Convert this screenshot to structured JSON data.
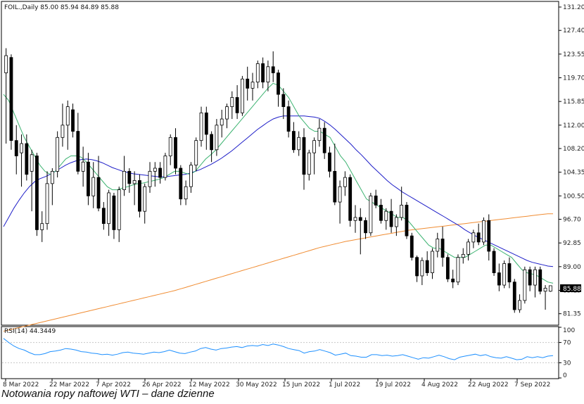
{
  "caption": "Notowania ropy naftowej WTI – dane dzienne",
  "chart_data": {
    "type": "candlestick",
    "symbol_header": "FOIL.,Daily  85.00 85.94 84.89 85.88",
    "last_price_label": "85.88",
    "y_ticks": [
      "131.20",
      "127.40",
      "123.55",
      "119.70",
      "115.85",
      "112.00",
      "108.20",
      "104.35",
      "100.50",
      "96.70",
      "92.85",
      "89.00",
      "85.15",
      "81.35"
    ],
    "x_ticks": [
      "8 Mar 2022",
      "22 Mar 2022",
      "7 Apr 2022",
      "26 Apr 2022",
      "12 May 2022",
      "30 May 2022",
      "15 Jun 2022",
      "1 Jul 2022",
      "19 Jul 2022",
      "4 Aug 2022",
      "22 Aug 2022",
      "7 Sep 2022"
    ],
    "ylim": [
      79.6,
      132.0
    ],
    "candles_ohlc": [
      [
        120.5,
        124.5,
        109.0,
        123.3
      ],
      [
        123.0,
        123.5,
        108.0,
        109.5
      ],
      [
        109.5,
        112.0,
        104.0,
        107.0
      ],
      [
        107.5,
        110.5,
        102.0,
        109.0
      ],
      [
        109.0,
        110.5,
        103.0,
        104.0
      ],
      [
        104.5,
        108.0,
        98.0,
        107.2
      ],
      [
        107.0,
        107.5,
        94.0,
        95.0
      ],
      [
        95.0,
        98.0,
        93.0,
        96.0
      ],
      [
        96.0,
        104.5,
        95.0,
        102.5
      ],
      [
        102.5,
        105.0,
        99.0,
        104.5
      ],
      [
        104.5,
        111.0,
        103.5,
        110.0
      ],
      [
        110.0,
        115.5,
        108.5,
        112.0
      ],
      [
        112.0,
        116.0,
        108.0,
        115.0
      ],
      [
        114.5,
        115.5,
        110.0,
        111.0
      ],
      [
        111.0,
        114.0,
        104.0,
        104.5
      ],
      [
        104.5,
        108.5,
        102.0,
        106.0
      ],
      [
        106.0,
        107.5,
        99.0,
        100.5
      ],
      [
        100.5,
        106.0,
        98.5,
        103.5
      ],
      [
        103.5,
        107.0,
        98.0,
        98.5
      ],
      [
        98.5,
        99.5,
        95.0,
        96.0
      ],
      [
        96.0,
        101.5,
        94.0,
        101.0
      ],
      [
        100.5,
        101.0,
        93.5,
        95.0
      ],
      [
        95.0,
        102.0,
        93.0,
        101.5
      ],
      [
        101.5,
        107.0,
        100.5,
        104.5
      ],
      [
        104.5,
        105.0,
        101.0,
        102.5
      ],
      [
        102.5,
        104.5,
        99.0,
        103.0
      ],
      [
        103.0,
        104.0,
        97.0,
        98.0
      ],
      [
        98.0,
        102.5,
        96.0,
        102.0
      ],
      [
        102.0,
        106.0,
        101.0,
        104.5
      ],
      [
        104.5,
        106.0,
        102.0,
        105.0
      ],
      [
        105.0,
        106.0,
        102.5,
        103.5
      ],
      [
        103.5,
        107.5,
        103.0,
        107.0
      ],
      [
        107.0,
        110.5,
        105.5,
        110.0
      ],
      [
        110.0,
        111.5,
        104.0,
        105.0
      ],
      [
        105.0,
        105.5,
        99.0,
        100.0
      ],
      [
        100.0,
        103.0,
        99.0,
        102.0
      ],
      [
        102.0,
        106.0,
        101.0,
        105.5
      ],
      [
        105.5,
        110.0,
        104.5,
        109.5
      ],
      [
        109.5,
        115.0,
        108.5,
        114.0
      ],
      [
        114.0,
        115.0,
        108.0,
        110.5
      ],
      [
        110.5,
        111.0,
        106.0,
        108.0
      ],
      [
        108.0,
        113.0,
        107.0,
        112.0
      ],
      [
        112.0,
        114.5,
        110.0,
        113.0
      ],
      [
        113.0,
        115.5,
        111.5,
        115.0
      ],
      [
        115.0,
        117.5,
        113.0,
        116.5
      ],
      [
        116.5,
        118.5,
        113.0,
        114.0
      ],
      [
        114.0,
        120.0,
        113.5,
        119.5
      ],
      [
        119.5,
        121.5,
        116.0,
        118.0
      ],
      [
        118.0,
        120.5,
        116.0,
        119.0
      ],
      [
        119.0,
        122.5,
        118.0,
        122.0
      ],
      [
        122.0,
        123.0,
        118.0,
        119.0
      ],
      [
        119.0,
        122.5,
        117.5,
        121.5
      ],
      [
        121.5,
        124.0,
        119.0,
        120.5
      ],
      [
        120.5,
        121.0,
        115.0,
        117.0
      ],
      [
        117.0,
        118.0,
        113.0,
        115.0
      ],
      [
        115.0,
        116.0,
        110.0,
        111.0
      ],
      [
        111.0,
        112.5,
        107.5,
        108.0
      ],
      [
        108.0,
        111.0,
        107.0,
        110.0
      ],
      [
        110.0,
        111.5,
        101.5,
        104.0
      ],
      [
        104.0,
        108.0,
        103.0,
        107.5
      ],
      [
        107.5,
        110.0,
        104.0,
        109.5
      ],
      [
        109.5,
        113.0,
        108.5,
        111.5
      ],
      [
        111.5,
        112.5,
        106.5,
        107.5
      ],
      [
        107.5,
        108.5,
        103.5,
        104.5
      ],
      [
        104.5,
        109.0,
        99.0,
        99.5
      ],
      [
        99.5,
        103.0,
        96.0,
        102.0
      ],
      [
        102.0,
        104.5,
        100.5,
        103.5
      ],
      [
        103.5,
        104.0,
        95.5,
        96.5
      ],
      [
        96.5,
        99.0,
        94.5,
        97.0
      ],
      [
        97.0,
        98.5,
        91.0,
        96.5
      ],
      [
        96.5,
        97.0,
        93.5,
        94.5
      ],
      [
        94.5,
        101.0,
        94.0,
        100.5
      ],
      [
        100.5,
        101.5,
        98.5,
        99.0
      ],
      [
        99.0,
        100.0,
        96.0,
        96.5
      ],
      [
        96.5,
        98.5,
        95.0,
        98.0
      ],
      [
        98.0,
        100.0,
        94.5,
        95.5
      ],
      [
        95.5,
        97.5,
        94.0,
        97.0
      ],
      [
        97.0,
        102.0,
        96.5,
        99.0
      ],
      [
        99.0,
        99.5,
        93.5,
        94.0
      ],
      [
        94.0,
        94.5,
        90.0,
        90.5
      ],
      [
        90.5,
        90.8,
        86.5,
        87.5
      ],
      [
        87.5,
        90.5,
        86.0,
        90.0
      ],
      [
        90.0,
        91.5,
        87.5,
        88.0
      ],
      [
        88.0,
        92.0,
        87.0,
        91.5
      ],
      [
        91.5,
        94.5,
        90.5,
        93.5
      ],
      [
        93.5,
        95.5,
        89.0,
        90.5
      ],
      [
        90.5,
        91.0,
        86.5,
        87.0
      ],
      [
        87.0,
        88.5,
        85.5,
        86.5
      ],
      [
        86.5,
        91.0,
        86.0,
        90.5
      ],
      [
        90.5,
        92.0,
        89.5,
        91.0
      ],
      [
        91.0,
        93.5,
        90.0,
        93.0
      ],
      [
        93.0,
        95.0,
        92.0,
        94.5
      ],
      [
        94.5,
        96.0,
        92.5,
        93.0
      ],
      [
        93.0,
        97.0,
        92.5,
        96.5
      ],
      [
        96.5,
        97.5,
        90.0,
        91.5
      ],
      [
        91.5,
        92.0,
        87.5,
        88.0
      ],
      [
        88.0,
        89.5,
        85.0,
        86.0
      ],
      [
        86.0,
        90.0,
        85.5,
        89.5
      ],
      [
        89.5,
        90.5,
        85.5,
        86.5
      ],
      [
        86.5,
        87.0,
        81.5,
        82.0
      ],
      [
        82.0,
        84.5,
        81.5,
        83.5
      ],
      [
        83.5,
        89.0,
        83.0,
        88.5
      ],
      [
        88.5,
        89.0,
        85.0,
        86.0
      ],
      [
        86.0,
        89.0,
        84.0,
        88.5
      ],
      [
        88.5,
        89.0,
        84.5,
        85.0
      ],
      [
        85.0,
        86.0,
        82.0,
        85.5
      ],
      [
        85.0,
        85.9,
        84.9,
        85.9
      ]
    ],
    "ma_short": [
      117.0,
      116.0,
      114.0,
      112.0,
      110.0,
      108.5,
      107.0,
      105.5,
      104.5,
      104.0,
      104.5,
      105.5,
      106.5,
      107.0,
      107.0,
      106.8,
      106.0,
      105.0,
      104.0,
      103.0,
      102.0,
      101.5,
      101.5,
      101.8,
      102.0,
      102.3,
      102.5,
      102.6,
      102.8,
      103.0,
      103.2,
      103.5,
      104.0,
      104.5,
      104.5,
      104.2,
      104.0,
      104.5,
      105.5,
      106.5,
      107.2,
      108.0,
      109.0,
      110.0,
      111.0,
      112.0,
      113.0,
      114.0,
      115.0,
      116.0,
      117.0,
      118.0,
      118.8,
      118.5,
      117.5,
      116.5,
      115.0,
      113.5,
      112.5,
      111.5,
      111.0,
      111.0,
      110.5,
      110.0,
      108.5,
      107.0,
      106.0,
      104.5,
      103.0,
      101.5,
      100.0,
      99.5,
      99.0,
      98.5,
      98.0,
      97.5,
      97.0,
      97.0,
      96.5,
      95.5,
      94.5,
      93.5,
      92.5,
      92.0,
      92.0,
      91.5,
      91.0,
      90.5,
      90.5,
      90.5,
      91.0,
      91.5,
      92.0,
      92.5,
      92.5,
      92.0,
      91.5,
      91.0,
      90.5,
      89.5,
      88.5,
      88.0,
      87.8,
      87.5,
      87.0,
      86.5,
      86.3
    ],
    "ma_medium": [
      95.5,
      97.0,
      98.5,
      99.8,
      101.0,
      102.0,
      102.8,
      103.3,
      103.6,
      104.0,
      104.5,
      105.0,
      105.5,
      105.9,
      106.2,
      106.4,
      106.5,
      106.4,
      106.2,
      105.9,
      105.5,
      105.1,
      104.8,
      104.5,
      104.3,
      104.1,
      104.0,
      103.9,
      103.8,
      103.7,
      103.6,
      103.6,
      103.7,
      103.8,
      103.9,
      104.0,
      104.2,
      104.5,
      104.8,
      105.2,
      105.6,
      106.1,
      106.6,
      107.2,
      107.8,
      108.5,
      109.2,
      109.9,
      110.6,
      111.3,
      111.9,
      112.5,
      113.0,
      113.3,
      113.5,
      113.5,
      113.5,
      113.5,
      113.5,
      113.4,
      113.3,
      113.1,
      112.6,
      112.0,
      111.3,
      110.5,
      109.7,
      108.9,
      108.0,
      107.2,
      106.3,
      105.4,
      104.6,
      103.8,
      103.0,
      102.3,
      101.7,
      101.1,
      100.6,
      100.1,
      99.6,
      99.1,
      98.6,
      98.1,
      97.6,
      97.1,
      96.6,
      96.1,
      95.6,
      95.0,
      94.5,
      94.0,
      93.6,
      93.2,
      92.8,
      92.4,
      92.0,
      91.6,
      91.2,
      90.8,
      90.4,
      90.0,
      89.7,
      89.5,
      89.3,
      89.1,
      89.0
    ],
    "ma_long": [
      78.5,
      78.7,
      78.9,
      79.1,
      79.3,
      79.5,
      79.7,
      79.9,
      80.1,
      80.3,
      80.5,
      80.7,
      80.9,
      81.1,
      81.3,
      81.5,
      81.7,
      81.9,
      82.1,
      82.3,
      82.5,
      82.7,
      82.9,
      83.1,
      83.3,
      83.5,
      83.7,
      83.9,
      84.1,
      84.3,
      84.5,
      84.7,
      84.9,
      85.1,
      85.35,
      85.6,
      85.85,
      86.1,
      86.35,
      86.6,
      86.85,
      87.1,
      87.35,
      87.6,
      87.85,
      88.1,
      88.35,
      88.6,
      88.85,
      89.1,
      89.35,
      89.6,
      89.85,
      90.1,
      90.35,
      90.6,
      90.85,
      91.1,
      91.35,
      91.6,
      91.85,
      92.1,
      92.3,
      92.5,
      92.7,
      92.9,
      93.1,
      93.25,
      93.4,
      93.55,
      93.7,
      93.85,
      94.0,
      94.15,
      94.3,
      94.45,
      94.6,
      94.75,
      94.9,
      95.0,
      95.1,
      95.2,
      95.3,
      95.4,
      95.5,
      95.6,
      95.7,
      95.8,
      95.9,
      96.0,
      96.1,
      96.2,
      96.3,
      96.4,
      96.5,
      96.6,
      96.7,
      96.8,
      96.9,
      97.0,
      97.1,
      97.2,
      97.3,
      97.4,
      97.5,
      97.6,
      97.6
    ],
    "colors": {
      "candle": "#000000",
      "ma_short": "#3cb371",
      "ma_medium": "#1e1ec8",
      "ma_long": "#f08c32",
      "rsi": "#1e90ff",
      "grid": "#e6e6e6"
    },
    "rsi": {
      "label": "RSI(14) 44.3449",
      "y_ticks": [
        "100",
        "70",
        "30",
        "0"
      ],
      "ylim": [
        0,
        100
      ],
      "values": [
        78,
        70,
        63,
        58,
        55,
        50,
        46,
        46,
        48,
        52,
        53,
        55,
        58,
        57,
        55,
        52,
        51,
        49,
        48,
        46,
        47,
        45,
        47,
        50,
        51,
        49,
        48,
        47,
        49,
        51,
        50,
        52,
        55,
        52,
        49,
        48,
        51,
        53,
        58,
        60,
        57,
        55,
        58,
        59,
        61,
        62,
        60,
        63,
        64,
        63,
        66,
        64,
        67,
        65,
        62,
        58,
        56,
        54,
        49,
        52,
        53,
        56,
        53,
        50,
        45,
        47,
        49,
        44,
        43,
        41,
        41,
        46,
        46,
        44,
        45,
        43,
        44,
        46,
        43,
        40,
        37,
        40,
        39,
        42,
        45,
        42,
        38,
        36,
        41,
        43,
        45,
        47,
        44,
        46,
        42,
        40,
        39,
        42,
        39,
        36,
        37,
        42,
        40,
        42,
        40,
        43,
        44
      ]
    }
  }
}
